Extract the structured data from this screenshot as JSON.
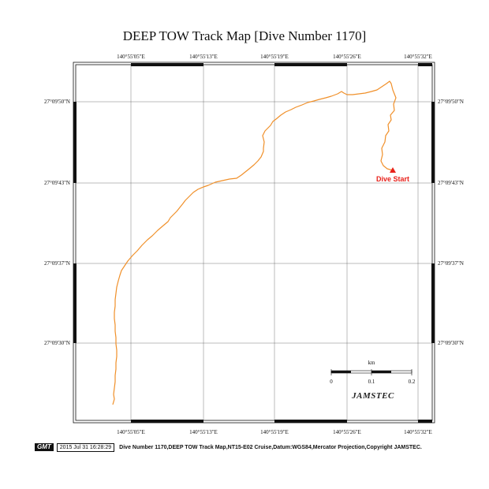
{
  "title": "DEEP TOW Track Map [Dive Number 1170]",
  "lon_labels": [
    "140°55'05\"E",
    "140°55'13\"E",
    "140°55'19\"E",
    "140°55'26\"E",
    "140°55'32\"E"
  ],
  "lat_labels": [
    "27°09'50\"N",
    "27°09'43\"N",
    "27°09'37\"N",
    "27°09'30\"N"
  ],
  "marker": {
    "label": "Dive Start",
    "color": "#e8211b"
  },
  "track_color": "#f0902a",
  "scale": {
    "unit": "km",
    "ticks": [
      "0",
      "0.1",
      "0.2"
    ]
  },
  "logo": "JAMSTEC",
  "footer": {
    "gmt": "GMT",
    "timestamp": "2015 Jul 31 16:28:29",
    "credits": "Dive Number 1170,DEEP TOW Track Map,NT15-E02 Cruise,Datum:WGS84,Mercator Projection,Copyright JAMSTEC."
  }
}
